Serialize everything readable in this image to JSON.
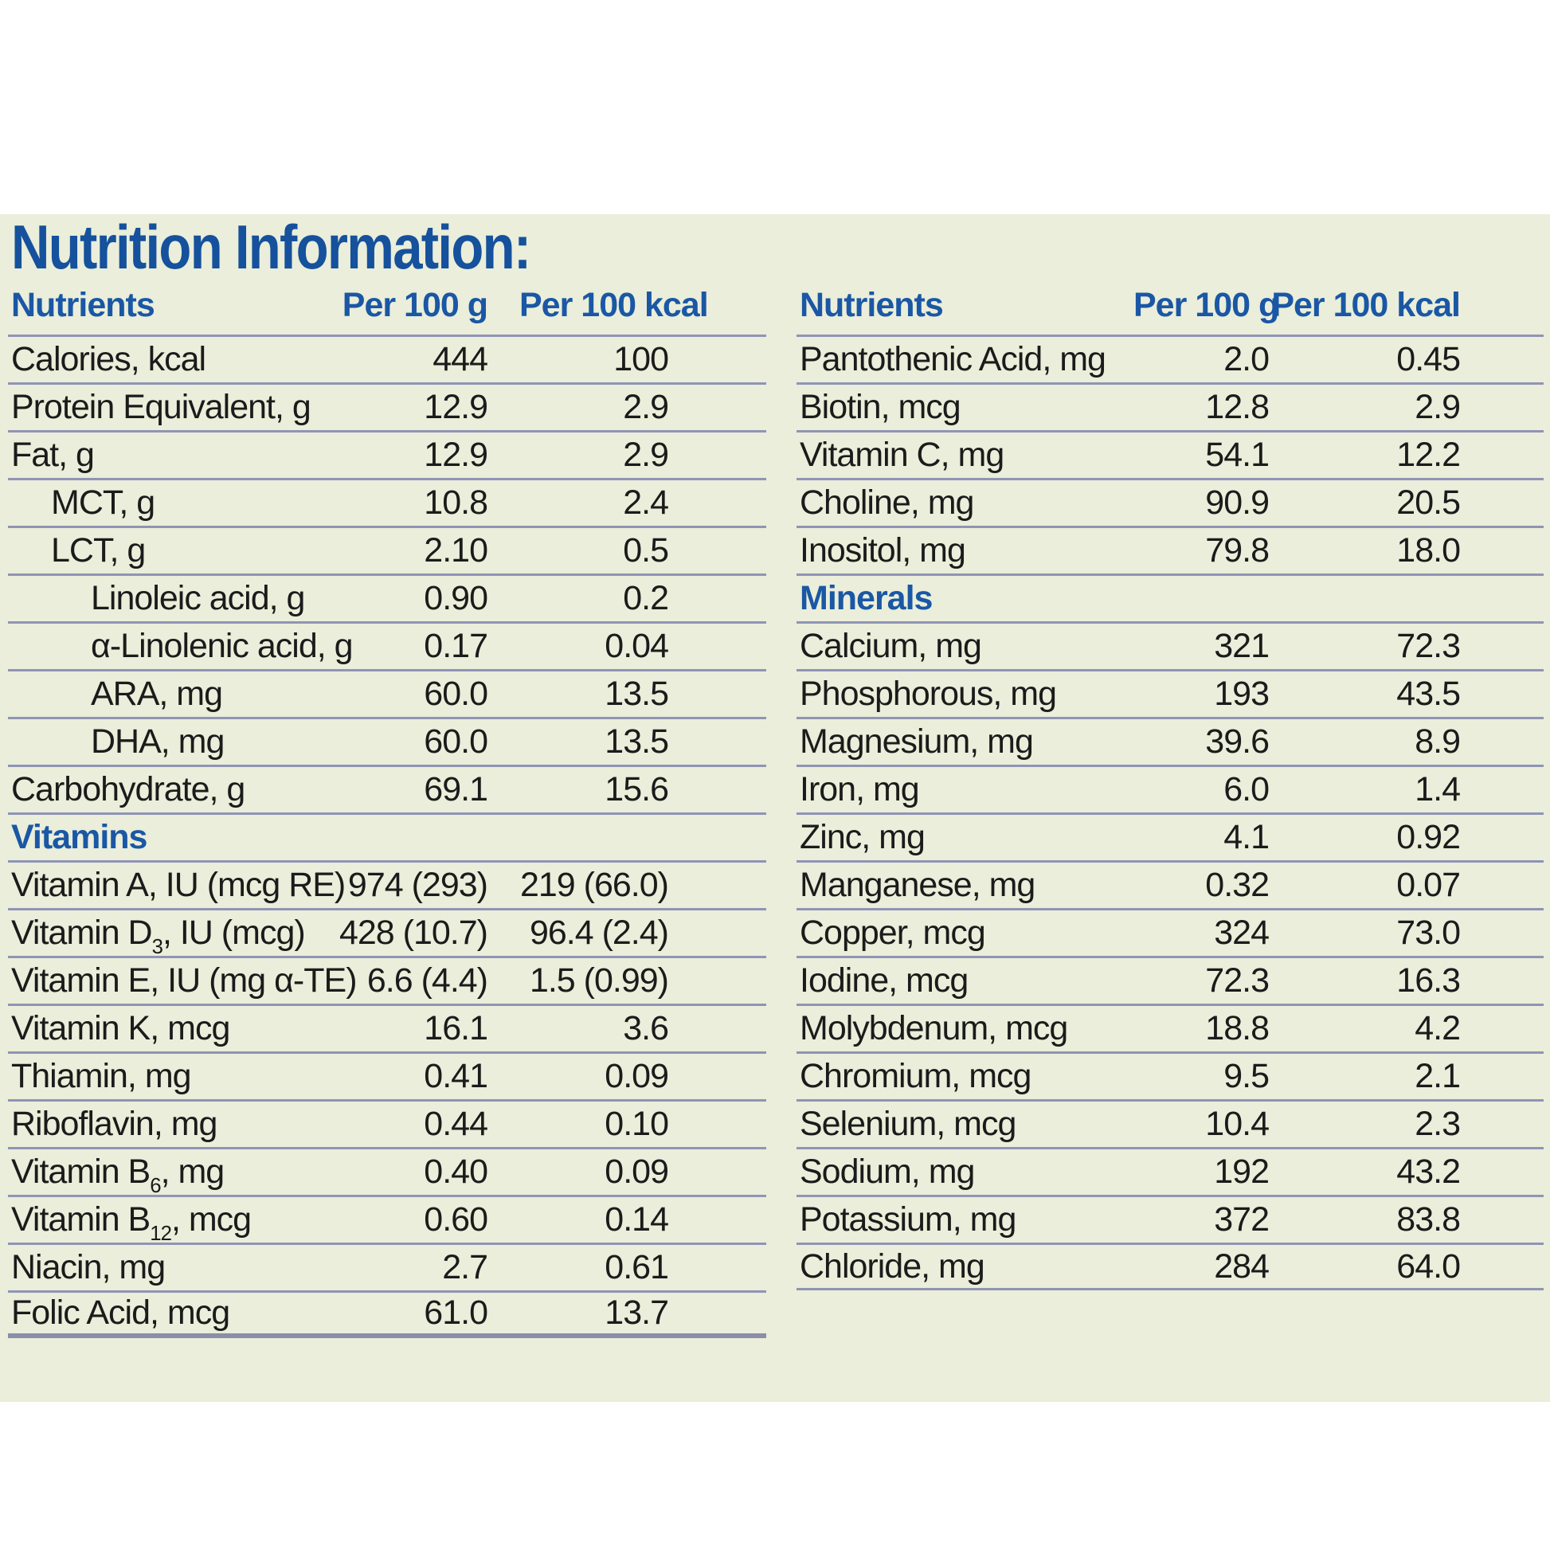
{
  "panel": {
    "title": "Nutrition Information:",
    "colors": {
      "background": "#eaeeda",
      "accent_blue": "#15519c",
      "header_blue": "#1a57a5",
      "body_text": "#1b1b1b",
      "rule_line": "#9094b5"
    }
  },
  "left_table": {
    "headers": {
      "nutrients": "Nutrients",
      "per_100_g": "Per 100 g",
      "per_100_kcal": "Per 100 kcal"
    },
    "rows": [
      {
        "label": "Calories, kcal",
        "g": "444",
        "kcal": "100"
      },
      {
        "label": "Protein Equivalent, g",
        "g": "12.9",
        "kcal": "2.9"
      },
      {
        "label": "Fat, g",
        "g": "12.9",
        "kcal": "2.9"
      },
      {
        "label": "MCT, g",
        "g": "10.8",
        "kcal": "2.4",
        "indent": 1
      },
      {
        "label": "LCT, g",
        "g": "2.10",
        "kcal": "0.5",
        "indent": 1
      },
      {
        "label": "Linoleic acid, g",
        "g": "0.90",
        "kcal": "0.2",
        "indent": 2
      },
      {
        "label": "α-Linolenic acid, g",
        "g": "0.17",
        "kcal": "0.04",
        "indent": 2
      },
      {
        "label": "ARA, mg",
        "g": "60.0",
        "kcal": "13.5",
        "indent": 2
      },
      {
        "label": "DHA, mg",
        "g": "60.0",
        "kcal": "13.5",
        "indent": 2
      },
      {
        "label": "Carbohydrate, g",
        "g": "69.1",
        "kcal": "15.6"
      },
      {
        "section": "Vitamins"
      },
      {
        "label": "Vitamin A, IU (mcg RE)",
        "g": "974 (293)",
        "kcal": "219 (66.0)"
      },
      {
        "label": "Vitamin D",
        "sub": "3",
        "label2": ", IU (mcg)",
        "g": "428 (10.7)",
        "kcal": "96.4 (2.4)"
      },
      {
        "label": "Vitamin E, IU (mg α-TE)",
        "g": "6.6 (4.4)",
        "kcal": "1.5 (0.99)"
      },
      {
        "label": "Vitamin K, mcg",
        "g": "16.1",
        "kcal": "3.6"
      },
      {
        "label": "Thiamin, mg",
        "g": "0.41",
        "kcal": "0.09"
      },
      {
        "label": "Riboflavin, mg",
        "g": "0.44",
        "kcal": "0.10"
      },
      {
        "label": "Vitamin B",
        "sub": "6",
        "label2": ", mg",
        "g": "0.40",
        "kcal": "0.09"
      },
      {
        "label": "Vitamin B",
        "sub": "12",
        "label2": ", mcg",
        "g": "0.60",
        "kcal": "0.14"
      },
      {
        "label": "Niacin, mg",
        "g": "2.7",
        "kcal": "0.61"
      },
      {
        "label": "Folic Acid, mcg",
        "g": "61.0",
        "kcal": "13.7"
      }
    ]
  },
  "right_table": {
    "headers": {
      "nutrients": "Nutrients",
      "per_100_g": "Per 100 g",
      "per_100_kcal": "Per 100 kcal"
    },
    "rows": [
      {
        "label": "Pantothenic Acid, mg",
        "g": "2.0",
        "kcal": "0.45"
      },
      {
        "label": "Biotin, mcg",
        "g": "12.8",
        "kcal": "2.9"
      },
      {
        "label": "Vitamin C, mg",
        "g": "54.1",
        "kcal": "12.2"
      },
      {
        "label": "Choline, mg",
        "g": "90.9",
        "kcal": "20.5"
      },
      {
        "label": "Inositol, mg",
        "g": "79.8",
        "kcal": "18.0"
      },
      {
        "section": "Minerals"
      },
      {
        "label": "Calcium, mg",
        "g": "321",
        "kcal": "72.3"
      },
      {
        "label": "Phosphorous, mg",
        "g": "193",
        "kcal": "43.5"
      },
      {
        "label": "Magnesium, mg",
        "g": "39.6",
        "kcal": "8.9"
      },
      {
        "label": "Iron, mg",
        "g": "6.0",
        "kcal": "1.4"
      },
      {
        "label": "Zinc, mg",
        "g": "4.1",
        "kcal": "0.92"
      },
      {
        "label": "Manganese, mg",
        "g": "0.32",
        "kcal": "0.07"
      },
      {
        "label": "Copper, mcg",
        "g": "324",
        "kcal": "73.0"
      },
      {
        "label": "Iodine, mcg",
        "g": "72.3",
        "kcal": "16.3"
      },
      {
        "label": "Molybdenum, mcg",
        "g": "18.8",
        "kcal": "4.2"
      },
      {
        "label": "Chromium, mcg",
        "g": "9.5",
        "kcal": "2.1"
      },
      {
        "label": "Selenium, mcg",
        "g": "10.4",
        "kcal": "2.3"
      },
      {
        "label": "Sodium, mg",
        "g": "192",
        "kcal": "43.2"
      },
      {
        "label": "Potassium, mg",
        "g": "372",
        "kcal": "83.8"
      },
      {
        "label": "Chloride, mg",
        "g": "284",
        "kcal": "64.0"
      }
    ]
  }
}
